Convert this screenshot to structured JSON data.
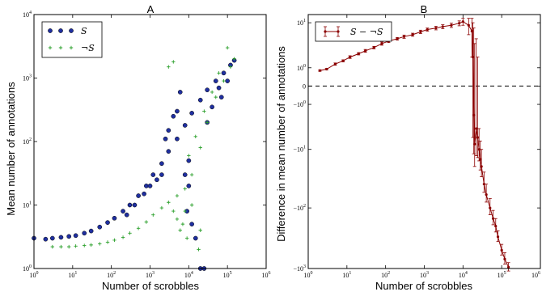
{
  "chart_data": [
    {
      "type": "scatter",
      "panel_label": "A",
      "xlabel": "Number of scrobbles",
      "ylabel": "Mean number of annotations",
      "xscale": "log",
      "yscale": "log",
      "xlim": [
        1,
        1000000
      ],
      "ylim": [
        1,
        10000
      ],
      "x_ticks": [
        {
          "v": 1,
          "b": "10",
          "e": "0"
        },
        {
          "v": 10,
          "b": "10",
          "e": "1"
        },
        {
          "v": 100,
          "b": "10",
          "e": "2"
        },
        {
          "v": 1000,
          "b": "10",
          "e": "3"
        },
        {
          "v": 10000,
          "b": "10",
          "e": "4"
        },
        {
          "v": 100000,
          "b": "10",
          "e": "5"
        },
        {
          "v": 1000000,
          "b": "10",
          "e": "6"
        }
      ],
      "y_ticks": [
        {
          "v": 1,
          "b": "10",
          "e": "0"
        },
        {
          "v": 10,
          "b": "10",
          "e": "1"
        },
        {
          "v": 100,
          "b": "10",
          "e": "2"
        },
        {
          "v": 1000,
          "b": "10",
          "e": "3"
        },
        {
          "v": 10000,
          "b": "10",
          "e": "4"
        }
      ],
      "legend_position": "top-left",
      "series": [
        {
          "name": "S",
          "marker": "circle",
          "color": "#1f2fa0",
          "edge": "#000000",
          "points": [
            [
              1,
              3.0
            ],
            [
              2,
              2.9
            ],
            [
              3,
              3.0
            ],
            [
              5,
              3.1
            ],
            [
              8,
              3.2
            ],
            [
              12,
              3.3
            ],
            [
              20,
              3.6
            ],
            [
              30,
              3.9
            ],
            [
              50,
              4.5
            ],
            [
              80,
              5.3
            ],
            [
              120,
              6.2
            ],
            [
              200,
              8
            ],
            [
              300,
              10
            ],
            [
              500,
              14
            ],
            [
              800,
              20
            ],
            [
              1200,
              30
            ],
            [
              2000,
              45
            ],
            [
              3000,
              70
            ],
            [
              5000,
              110
            ],
            [
              8000,
              180
            ],
            [
              12000,
              280
            ],
            [
              20000,
              450
            ],
            [
              30000,
              650
            ],
            [
              50000,
              900
            ],
            [
              80000,
              1200
            ],
            [
              120000,
              1600
            ],
            [
              150000,
              1900
            ],
            [
              5000,
              300
            ],
            [
              4000,
              250
            ],
            [
              3000,
              150
            ],
            [
              2500,
              110
            ],
            [
              6000,
              600
            ],
            [
              10000,
              20
            ],
            [
              9000,
              8
            ],
            [
              12000,
              5
            ],
            [
              15000,
              3
            ],
            [
              20000,
              1.0
            ],
            [
              25000,
              1.0
            ],
            [
              10000,
              50
            ],
            [
              8000,
              30
            ],
            [
              30000,
              200
            ],
            [
              40000,
              350
            ],
            [
              60000,
              700
            ],
            [
              70000,
              500
            ],
            [
              100000,
              900
            ],
            [
              2000,
              30
            ],
            [
              1500,
              25
            ],
            [
              1000,
              20
            ],
            [
              700,
              15
            ],
            [
              400,
              10
            ],
            [
              250,
              7
            ]
          ]
        },
        {
          "name": "¬S",
          "marker": "plus",
          "color": "#2ca02c",
          "points": [
            [
              3,
              2.2
            ],
            [
              5,
              2.2
            ],
            [
              8,
              2.2
            ],
            [
              12,
              2.25
            ],
            [
              20,
              2.3
            ],
            [
              30,
              2.35
            ],
            [
              50,
              2.45
            ],
            [
              80,
              2.6
            ],
            [
              120,
              2.8
            ],
            [
              200,
              3.1
            ],
            [
              300,
              3.6
            ],
            [
              500,
              4.3
            ],
            [
              800,
              5.4
            ],
            [
              1200,
              7
            ],
            [
              2000,
              9
            ],
            [
              3000,
              11
            ],
            [
              5000,
              14
            ],
            [
              8000,
              18
            ],
            [
              12000,
              30
            ],
            [
              20000,
              80
            ],
            [
              30000,
              200
            ],
            [
              50000,
              500
            ],
            [
              80000,
              900
            ],
            [
              120000,
              1500
            ],
            [
              150000,
              2000
            ],
            [
              100000,
              3000
            ],
            [
              60000,
              1200
            ],
            [
              40000,
              600
            ],
            [
              25000,
              300
            ],
            [
              15000,
              120
            ],
            [
              10000,
              60
            ],
            [
              8000,
              8
            ],
            [
              7000,
              5
            ],
            [
              6000,
              4
            ],
            [
              9000,
              3
            ],
            [
              5000,
              6
            ],
            [
              4000,
              8
            ],
            [
              12000,
              10
            ],
            [
              3000,
              1500
            ],
            [
              4000,
              1800
            ],
            [
              18000,
              2
            ],
            [
              20000,
              4
            ]
          ]
        }
      ]
    },
    {
      "type": "line",
      "panel_label": "B",
      "xlabel": "Number of scrobbles",
      "ylabel": "Difference in mean number of annotations",
      "xscale": "log",
      "yscale": "symlog",
      "xlim": [
        1,
        1000000
      ],
      "ylim": [
        -1000,
        14
      ],
      "x_ticks": [
        {
          "v": 1,
          "b": "10",
          "e": "0"
        },
        {
          "v": 10,
          "b": "10",
          "e": "1"
        },
        {
          "v": 100,
          "b": "10",
          "e": "2"
        },
        {
          "v": 1000,
          "b": "10",
          "e": "3"
        },
        {
          "v": 10000,
          "b": "10",
          "e": "4"
        },
        {
          "v": 100000,
          "b": "10",
          "e": "5"
        },
        {
          "v": 1000000,
          "b": "10",
          "e": "6"
        }
      ],
      "y_ticks": [
        {
          "v": 10,
          "b": "10",
          "e": "1"
        },
        {
          "v": 1,
          "b": "10",
          "e": "0"
        },
        {
          "v": 0,
          "b": "0",
          "e": ""
        },
        {
          "v": -1,
          "b": "−10",
          "e": "0"
        },
        {
          "v": -10,
          "b": "−10",
          "e": "1"
        },
        {
          "v": -100,
          "b": "−10",
          "e": "2"
        },
        {
          "v": -1000,
          "b": "−10",
          "e": "3"
        }
      ],
      "reference_line": {
        "y": 0,
        "style": "dashed"
      },
      "legend_position": "top-left",
      "series": [
        {
          "name": "S − ¬S",
          "color": "#8b0000",
          "points": [
            [
              2,
              0.8,
              0.05
            ],
            [
              3,
              0.9,
              0.05
            ],
            [
              5,
              1.3,
              0.1
            ],
            [
              8,
              1.6,
              0.1
            ],
            [
              12,
              2.0,
              0.15
            ],
            [
              20,
              2.4,
              0.15
            ],
            [
              30,
              2.8,
              0.2
            ],
            [
              50,
              3.3,
              0.2
            ],
            [
              80,
              4.0,
              0.3
            ],
            [
              120,
              4.5,
              0.3
            ],
            [
              200,
              5.0,
              0.3
            ],
            [
              300,
              5.5,
              0.4
            ],
            [
              500,
              6.0,
              0.4
            ],
            [
              800,
              6.8,
              0.5
            ],
            [
              1200,
              7.5,
              0.5
            ],
            [
              2000,
              8.0,
              0.6
            ],
            [
              3000,
              8.5,
              0.7
            ],
            [
              5000,
              9.0,
              0.8
            ],
            [
              8000,
              9.8,
              1.0
            ],
            [
              10000,
              10.5,
              1.5
            ],
            [
              14000,
              9.0,
              3.0
            ],
            [
              17000,
              7.0,
              5.0
            ],
            [
              18000,
              2.0,
              8.0
            ],
            [
              19000,
              -2.0,
              10.0
            ],
            [
              20000,
              -8.0,
              12.0
            ],
            [
              22000,
              -4.0,
              9.0
            ],
            [
              24000,
              -6.0,
              8.0
            ],
            [
              26000,
              -10,
              6
            ],
            [
              28000,
              -15,
              8
            ],
            [
              30000,
              -20,
              10
            ],
            [
              35000,
              -40,
              15
            ],
            [
              40000,
              -60,
              20
            ],
            [
              50000,
              -100,
              30
            ],
            [
              60000,
              -150,
              40
            ],
            [
              70000,
              -200,
              50
            ],
            [
              80000,
              -300,
              60
            ],
            [
              100000,
              -500,
              100
            ],
            [
              120000,
              -700,
              150
            ],
            [
              150000,
              -950,
              150
            ]
          ]
        }
      ]
    }
  ]
}
